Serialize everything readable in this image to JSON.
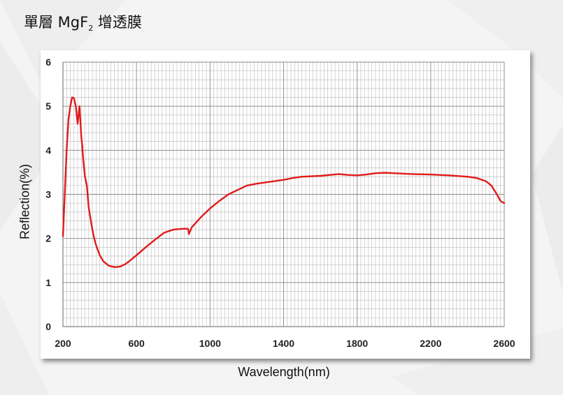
{
  "title": {
    "prefix": "單層 MgF",
    "subscript": "2",
    "suffix": " 增透膜"
  },
  "chart_data": {
    "type": "line",
    "xlabel": "Wavelength(nm)",
    "ylabel": "Reflection(%)",
    "xlim": [
      200,
      2600
    ],
    "ylim": [
      0,
      6
    ],
    "xticks": [
      200,
      600,
      1000,
      1400,
      1800,
      2200,
      2600
    ],
    "yticks": [
      0,
      1,
      2,
      3,
      4,
      5,
      6
    ],
    "grid": true,
    "legend": "none",
    "series": [
      {
        "color": "#e01b1b",
        "x": [
          200,
          210,
          220,
          230,
          240,
          250,
          260,
          270,
          280,
          290,
          300,
          305,
          310,
          315,
          320,
          330,
          340,
          350,
          360,
          370,
          380,
          400,
          420,
          450,
          480,
          510,
          540,
          560,
          580,
          600,
          650,
          700,
          750,
          800,
          850,
          880,
          885,
          890,
          900,
          950,
          1000,
          1050,
          1100,
          1150,
          1200,
          1250,
          1300,
          1350,
          1400,
          1450,
          1500,
          1600,
          1700,
          1750,
          1800,
          1850,
          1900,
          1950,
          2000,
          2050,
          2100,
          2200,
          2300,
          2400,
          2450,
          2500,
          2530,
          2560,
          2580,
          2600
        ],
        "y": [
          2.05,
          3.0,
          4.0,
          4.7,
          5.0,
          5.2,
          5.18,
          5.0,
          4.6,
          5.0,
          4.3,
          4.1,
          3.8,
          3.6,
          3.4,
          3.2,
          2.7,
          2.45,
          2.2,
          2.0,
          1.85,
          1.62,
          1.48,
          1.38,
          1.35,
          1.36,
          1.42,
          1.48,
          1.55,
          1.62,
          1.8,
          1.97,
          2.13,
          2.2,
          2.22,
          2.22,
          2.1,
          2.15,
          2.25,
          2.48,
          2.68,
          2.85,
          3.0,
          3.1,
          3.2,
          3.24,
          3.27,
          3.3,
          3.33,
          3.37,
          3.4,
          3.42,
          3.46,
          3.44,
          3.43,
          3.45,
          3.48,
          3.49,
          3.48,
          3.47,
          3.46,
          3.45,
          3.43,
          3.4,
          3.37,
          3.3,
          3.2,
          3.0,
          2.85,
          2.8
        ]
      }
    ]
  }
}
